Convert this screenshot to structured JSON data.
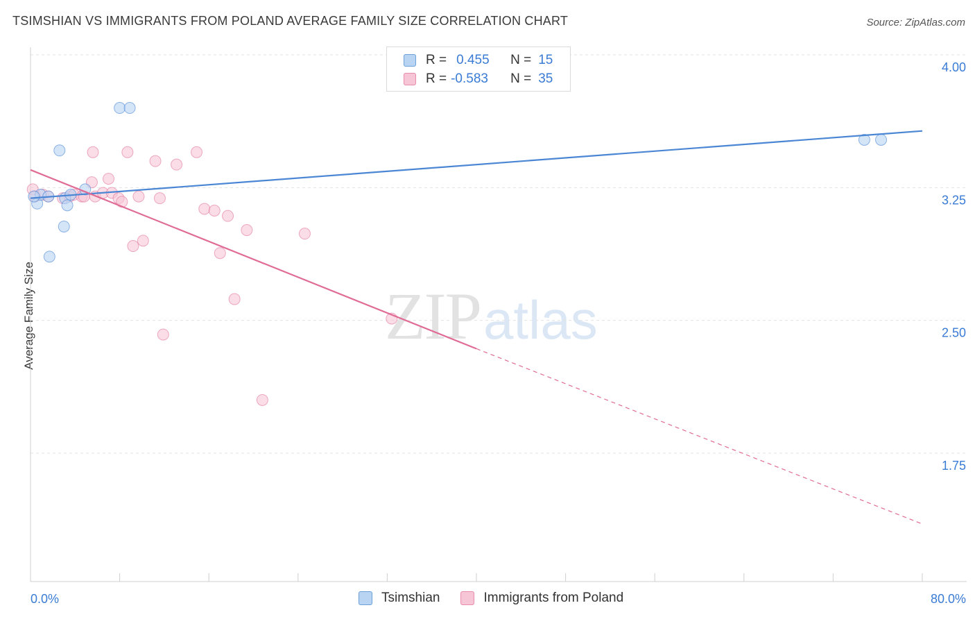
{
  "title": "TSIMSHIAN VS IMMIGRANTS FROM POLAND AVERAGE FAMILY SIZE CORRELATION CHART",
  "source": "Source: ZipAtlas.com",
  "watermark": {
    "zip": "ZIP",
    "atlas": "atlas"
  },
  "legend_top": {
    "rows": [
      {
        "r_label": "R =",
        "r_value": "0.455",
        "n_label": "N =",
        "n_value": "15",
        "color": "#a8c8f0",
        "border": "#6a9fd8"
      },
      {
        "r_label": "R =",
        "r_value": "-0.583",
        "n_label": "N =",
        "n_value": "35",
        "color": "#f7c5d5",
        "border": "#e88aa8"
      }
    ]
  },
  "chart_data": {
    "type": "scatter",
    "title": "TSIMSHIAN VS IMMIGRANTS FROM POLAND AVERAGE FAMILY SIZE CORRELATION CHART",
    "xlabel": "",
    "ylabel": "Average Family Size",
    "xlim": [
      0,
      80
    ],
    "ylim": [
      1.0,
      4.2
    ],
    "x_tick_labels": [
      "0.0%",
      "80.0%"
    ],
    "y_ticks": [
      4.0,
      3.25,
      2.5,
      1.75
    ],
    "y_tick_labels": [
      "4.00",
      "3.25",
      "2.50",
      "1.75"
    ],
    "grid": true,
    "legend_position": "bottom",
    "series": [
      {
        "name": "Tsimshian",
        "color": "#4a86d4",
        "fill": "#b9d3f3",
        "points": [
          [
            0.6,
            3.16
          ],
          [
            0.9,
            3.21
          ],
          [
            1.6,
            3.2
          ],
          [
            1.7,
            2.86
          ],
          [
            2.6,
            3.46
          ],
          [
            3.0,
            3.03
          ],
          [
            3.1,
            3.19
          ],
          [
            3.3,
            3.15
          ],
          [
            3.6,
            3.21
          ],
          [
            4.9,
            3.24
          ],
          [
            8.0,
            3.7
          ],
          [
            8.9,
            3.7
          ],
          [
            74.8,
            3.52
          ],
          [
            76.3,
            3.52
          ],
          [
            0.3,
            3.2
          ]
        ],
        "trend": {
          "x": [
            0,
            80
          ],
          "y": [
            3.19,
            3.57
          ],
          "style": "solid"
        }
      },
      {
        "name": "Immigrants from Poland",
        "color": "#e06b95",
        "fill": "#f6c6d6",
        "points": [
          [
            0.2,
            3.24
          ],
          [
            1.1,
            3.21
          ],
          [
            1.6,
            3.2
          ],
          [
            2.9,
            3.19
          ],
          [
            3.5,
            3.2
          ],
          [
            3.9,
            3.21
          ],
          [
            4.6,
            3.2
          ],
          [
            4.8,
            3.2
          ],
          [
            5.5,
            3.28
          ],
          [
            5.6,
            3.45
          ],
          [
            5.8,
            3.2
          ],
          [
            6.5,
            3.22
          ],
          [
            7.0,
            3.3
          ],
          [
            7.3,
            3.22
          ],
          [
            7.9,
            3.19
          ],
          [
            8.2,
            3.17
          ],
          [
            8.7,
            3.45
          ],
          [
            9.2,
            2.92
          ],
          [
            9.7,
            3.2
          ],
          [
            10.1,
            2.95
          ],
          [
            11.2,
            3.4
          ],
          [
            11.6,
            3.19
          ],
          [
            11.9,
            2.42
          ],
          [
            13.1,
            3.38
          ],
          [
            14.9,
            3.45
          ],
          [
            15.6,
            3.13
          ],
          [
            16.5,
            3.12
          ],
          [
            17.0,
            2.88
          ],
          [
            17.7,
            3.09
          ],
          [
            18.3,
            2.62
          ],
          [
            19.4,
            3.01
          ],
          [
            20.8,
            2.05
          ],
          [
            24.6,
            2.99
          ],
          [
            32.4,
            2.51
          ],
          [
            0.4,
            3.2
          ]
        ],
        "trend": {
          "x": [
            0,
            40
          ],
          "y": [
            3.35,
            2.34
          ],
          "style": "solid"
        },
        "trend_extension": {
          "x": [
            40,
            80
          ],
          "y": [
            2.34,
            1.35
          ],
          "style": "dashed"
        }
      }
    ]
  },
  "legend_bottom": [
    {
      "label": "Tsimshian",
      "color": "#b9d3f3",
      "border": "#6a9fd8"
    },
    {
      "label": "Immigrants from Poland",
      "color": "#f6c6d6",
      "border": "#e88aa8"
    }
  ]
}
